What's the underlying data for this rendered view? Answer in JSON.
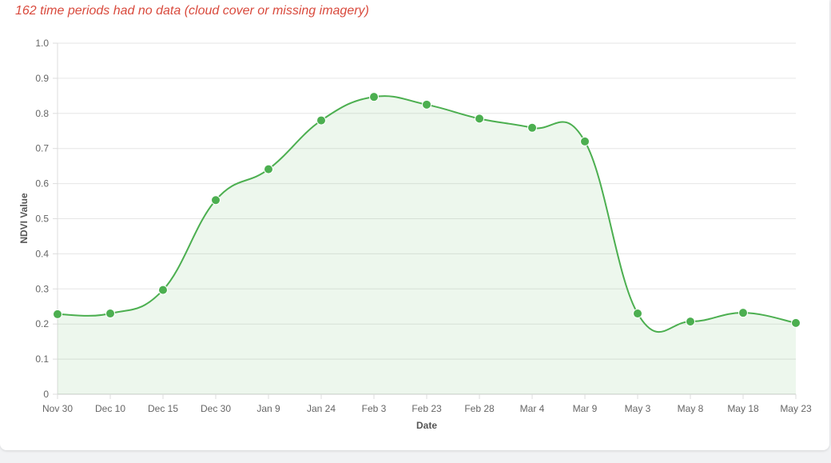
{
  "notice": {
    "text": "162 time periods had no data (cloud cover or missing imagery)",
    "color": "#d94a3d"
  },
  "chart_data": {
    "type": "line",
    "title": "",
    "xlabel": "Date",
    "ylabel": "NDVI Value",
    "categories": [
      "Nov 30",
      "Dec 10",
      "Dec 15",
      "Dec 30",
      "Jan 9",
      "Jan 24",
      "Feb 3",
      "Feb 23",
      "Feb 28",
      "Mar 4",
      "Mar 9",
      "May 3",
      "May 8",
      "May 18",
      "May 23"
    ],
    "series": [
      {
        "values": [
          0.228,
          0.23,
          0.297,
          0.553,
          0.641,
          0.78,
          0.847,
          0.825,
          0.785,
          0.759,
          0.72,
          0.23,
          0.207,
          0.232,
          0.203
        ],
        "color": "#4caf50"
      }
    ],
    "ylim": [
      0,
      1.0
    ],
    "yticks": [
      "0",
      "0.1",
      "0.2",
      "0.3",
      "0.4",
      "0.5",
      "0.6",
      "0.7",
      "0.8",
      "0.9",
      "1.0"
    ],
    "grid": true,
    "legend": "none",
    "fill": true
  }
}
